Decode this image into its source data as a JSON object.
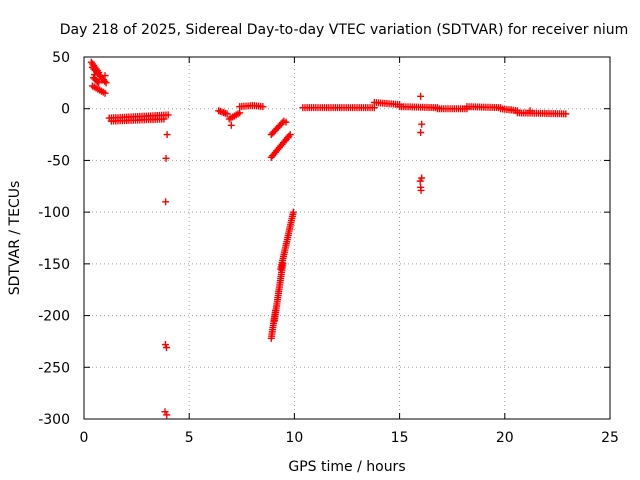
{
  "chart_data": {
    "type": "scatter",
    "title": "Day 218 of 2025, Sidereal Day-to-day VTEC variation (SDTVAR) for receiver nium",
    "xlabel": "GPS time / hours",
    "ylabel": "SDTVAR / TECUs",
    "xlim": [
      0,
      25
    ],
    "ylim": [
      -300,
      50
    ],
    "xticks": [
      0,
      5,
      10,
      15,
      20,
      25
    ],
    "yticks": [
      -300,
      -250,
      -200,
      -150,
      -100,
      -50,
      0,
      50
    ],
    "xtick_labels": [
      "0",
      "5",
      "10",
      "15",
      "20",
      "25"
    ],
    "ytick_labels": [
      "-300",
      "-250",
      "-200",
      "-150",
      "-100",
      "-50",
      "0",
      "50"
    ],
    "grid": true,
    "marker": "plus",
    "marker_color": "#ff0000",
    "segments": [
      {
        "x": [
          0.35,
          0.7
        ],
        "y": [
          45,
          35
        ]
      },
      {
        "x": [
          0.4,
          1.05
        ],
        "y": [
          40,
          25
        ]
      },
      {
        "x": [
          0.45,
          0.7
        ],
        "y": [
          30,
          25
        ]
      },
      {
        "x": [
          0.4,
          1.0
        ],
        "y": [
          22,
          15
        ]
      },
      {
        "x": [
          1.2,
          4.0
        ],
        "y": [
          -9,
          -6
        ]
      },
      {
        "x": [
          1.3,
          3.8
        ],
        "y": [
          -12,
          -10
        ]
      },
      {
        "x": [
          6.4,
          6.8
        ],
        "y": [
          -2,
          -5
        ]
      },
      {
        "x": [
          6.9,
          7.4
        ],
        "y": [
          -10,
          -4
        ]
      },
      {
        "x": [
          7.4,
          8.0
        ],
        "y": [
          2,
          3
        ]
      },
      {
        "x": [
          8.1,
          8.5
        ],
        "y": [
          3,
          2
        ]
      },
      {
        "x": [
          8.9,
          9.5
        ],
        "y": [
          -25,
          -12
        ]
      },
      {
        "x": [
          8.9,
          9.8
        ],
        "y": [
          -47,
          -25
        ]
      },
      {
        "x": [
          9.35,
          9.95
        ],
        "y": [
          -155,
          -100
        ]
      },
      {
        "x": [
          9.05,
          9.45
        ],
        "y": [
          -205,
          -150
        ]
      },
      {
        "x": [
          8.9,
          9.1
        ],
        "y": [
          -222,
          -195
        ]
      },
      {
        "x": [
          10.4,
          13.8
        ],
        "y": [
          1,
          1
        ]
      },
      {
        "x": [
          13.8,
          15.0
        ],
        "y": [
          6,
          4
        ]
      },
      {
        "x": [
          15.0,
          16.8
        ],
        "y": [
          2,
          1
        ]
      },
      {
        "x": [
          16.8,
          18.2
        ],
        "y": [
          0,
          0
        ]
      },
      {
        "x": [
          18.2,
          19.8
        ],
        "y": [
          2,
          1
        ]
      },
      {
        "x": [
          19.8,
          20.6
        ],
        "y": [
          0,
          -2
        ]
      },
      {
        "x": [
          20.6,
          22.9
        ],
        "y": [
          -4,
          -5
        ]
      }
    ],
    "points": [
      {
        "x": 0.5,
        "y": 33
      },
      {
        "x": 0.85,
        "y": 28
      },
      {
        "x": 1.0,
        "y": 32
      },
      {
        "x": 3.95,
        "y": -25
      },
      {
        "x": 3.9,
        "y": -48
      },
      {
        "x": 3.88,
        "y": -90
      },
      {
        "x": 3.87,
        "y": -228
      },
      {
        "x": 3.92,
        "y": -231
      },
      {
        "x": 3.85,
        "y": -293
      },
      {
        "x": 3.93,
        "y": -296
      },
      {
        "x": 7.0,
        "y": -16
      },
      {
        "x": 9.6,
        "y": -13
      },
      {
        "x": 9.7,
        "y": -28
      },
      {
        "x": 16.0,
        "y": 12
      },
      {
        "x": 16.05,
        "y": -15
      },
      {
        "x": 16.0,
        "y": -23
      },
      {
        "x": 16.05,
        "y": -67
      },
      {
        "x": 15.98,
        "y": -70
      },
      {
        "x": 16.0,
        "y": -76
      },
      {
        "x": 16.02,
        "y": -79
      },
      {
        "x": 20.3,
        "y": -1
      },
      {
        "x": 21.2,
        "y": -2
      }
    ]
  }
}
